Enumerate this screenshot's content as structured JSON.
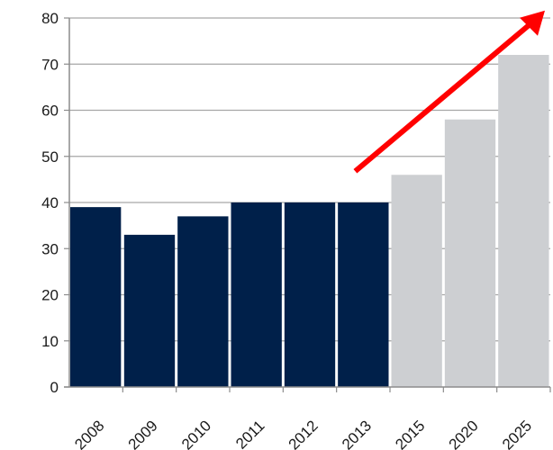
{
  "chart_data": {
    "type": "bar",
    "categories": [
      "2008",
      "2009",
      "2010",
      "2011",
      "2012",
      "2013",
      "2015",
      "2020",
      "2025"
    ],
    "values": [
      39,
      33,
      37,
      40,
      40,
      40,
      46,
      58,
      72
    ],
    "title": "",
    "xlabel": "",
    "ylabel": "",
    "ylim": [
      0,
      80
    ],
    "yticks": [
      0,
      10,
      20,
      30,
      40,
      50,
      60,
      70,
      80
    ],
    "grid": true,
    "colors": {
      "actual": "#00204a",
      "projected": "#cdcfd2",
      "trend_arrow": "#ff0000",
      "grid": "#a6a6a6"
    },
    "actual_count": 6,
    "annotations": [
      {
        "type": "trend-arrow",
        "from_category": "2013",
        "from_value": 46,
        "to_value": 82,
        "color": "#ff0000"
      }
    ]
  }
}
